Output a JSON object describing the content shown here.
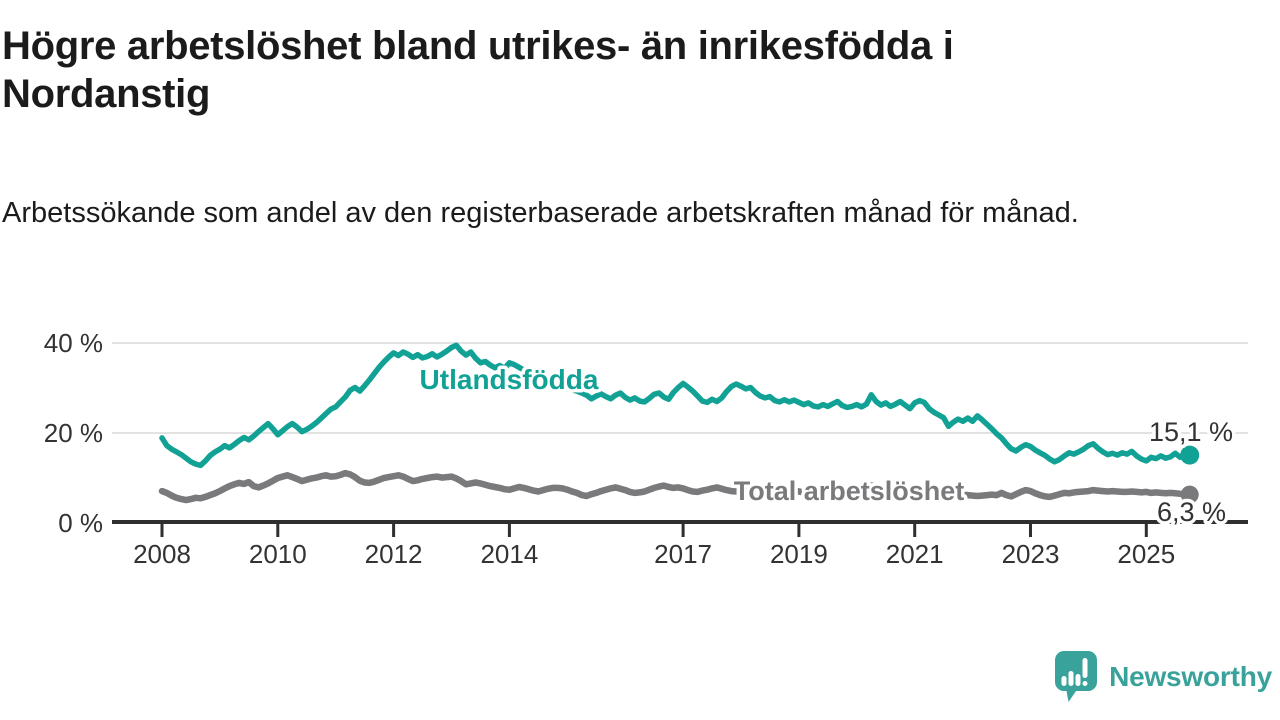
{
  "header": {
    "title": "Högre arbetslöshet bland utrikes- än inrikesfödda i Nordanstig",
    "subtitle": "Arbetssökande som andel av den registerbaserade arbetskraften månad för månad."
  },
  "footer": {
    "brand": "Newsworthy"
  },
  "colors": {
    "utlandsfodda": "#12a195",
    "total": "#7a7a7d",
    "grid": "#d8d8d8",
    "axis": "#2f2f2f",
    "axis_text": "#333333",
    "logo": "#39a29b"
  },
  "chart_data": {
    "type": "line",
    "title": "Högre arbetslöshet bland utrikes- än inrikesfödda i Nordanstig",
    "subtitle": "Arbetssökande som andel av den registerbaserade arbetskraften månad för månad.",
    "xlabel": "",
    "ylabel": "",
    "grid": "horizontal",
    "legend": "inline-labels",
    "x_start": 2008.0,
    "x_step_years": 0.0833333,
    "x_axis": {
      "tick_years": [
        2008,
        2010,
        2012,
        2014,
        2017,
        2019,
        2021,
        2023,
        2025
      ],
      "range": [
        2007.1,
        2026.8
      ]
    },
    "y_axis": {
      "ticks": [
        {
          "value": 0,
          "label": "0 %"
        },
        {
          "value": 20,
          "label": "20 %"
        },
        {
          "value": 40,
          "label": "40 %"
        }
      ],
      "range": [
        0,
        44
      ]
    },
    "series": [
      {
        "name": "Utlandsfödda",
        "color": "#12a195",
        "end_label": "15,1 %",
        "end_value": 15.1,
        "values": [
          18.9,
          17.2,
          16.4,
          15.8,
          15.2,
          14.4,
          13.6,
          13.1,
          12.8,
          13.8,
          15.0,
          15.8,
          16.4,
          17.2,
          16.7,
          17.5,
          18.3,
          19.0,
          18.5,
          19.3,
          20.3,
          21.2,
          22.1,
          20.9,
          19.6,
          20.5,
          21.4,
          22.1,
          21.3,
          20.3,
          20.8,
          21.5,
          22.3,
          23.3,
          24.3,
          25.3,
          25.8,
          26.9,
          28.0,
          29.5,
          30.1,
          29.3,
          30.5,
          31.8,
          33.2,
          34.6,
          35.8,
          36.9,
          37.8,
          37.2,
          38.0,
          37.5,
          36.8,
          37.4,
          36.7,
          37.0,
          37.6,
          36.9,
          37.5,
          38.2,
          39.0,
          39.5,
          38.2,
          37.3,
          38.0,
          36.6,
          35.6,
          35.9,
          35.1,
          34.5,
          35.0,
          34.4,
          35.6,
          35.2,
          34.6,
          34.0,
          33.4,
          32.8,
          32.2,
          31.7,
          31.2,
          30.8,
          30.4,
          30.1,
          29.9,
          29.6,
          29.3,
          28.9,
          28.4,
          27.6,
          28.2,
          28.7,
          28.1,
          27.6,
          28.4,
          28.9,
          27.9,
          27.3,
          27.8,
          27.1,
          26.9,
          27.7,
          28.6,
          28.9,
          28.0,
          27.5,
          29.0,
          30.1,
          31.0,
          30.2,
          29.3,
          28.2,
          27.1,
          26.8,
          27.5,
          27.0,
          27.8,
          29.2,
          30.3,
          30.9,
          30.4,
          29.8,
          30.1,
          29.0,
          28.2,
          27.8,
          28.1,
          27.2,
          26.9,
          27.4,
          26.9,
          27.3,
          26.8,
          26.3,
          26.7,
          26.0,
          25.8,
          26.3,
          25.9,
          26.5,
          27.0,
          26.1,
          25.7,
          25.9,
          26.3,
          25.8,
          26.4,
          28.5,
          27.0,
          26.2,
          26.7,
          25.9,
          26.4,
          27.0,
          26.2,
          25.4,
          26.7,
          27.2,
          26.8,
          25.4,
          24.6,
          24.0,
          23.4,
          21.5,
          22.4,
          23.1,
          22.6,
          23.3,
          22.6,
          23.8,
          22.9,
          21.9,
          20.9,
          19.8,
          18.9,
          17.6,
          16.5,
          16.0,
          16.8,
          17.4,
          17.0,
          16.2,
          15.6,
          15.0,
          14.2,
          13.6,
          14.1,
          14.9,
          15.6,
          15.3,
          15.8,
          16.4,
          17.2,
          17.6,
          16.6,
          15.8,
          15.2,
          15.5,
          15.1,
          15.6,
          15.3,
          15.9,
          14.9,
          14.2,
          13.8,
          14.6,
          14.3,
          14.9,
          14.4,
          14.7,
          15.5,
          14.6,
          15.0,
          15.1
        ]
      },
      {
        "name": "Total arbetslöshet",
        "color": "#7a7a7d",
        "end_label": "6,3 %",
        "end_value": 6.3,
        "values": [
          7.1,
          6.7,
          6.1,
          5.6,
          5.3,
          5.1,
          5.3,
          5.6,
          5.5,
          5.8,
          6.2,
          6.6,
          7.1,
          7.7,
          8.2,
          8.6,
          8.9,
          8.7,
          9.1,
          8.2,
          7.9,
          8.3,
          8.8,
          9.4,
          10.0,
          10.3,
          10.6,
          10.2,
          9.8,
          9.3,
          9.6,
          9.9,
          10.1,
          10.4,
          10.6,
          10.3,
          10.4,
          10.7,
          11.1,
          10.8,
          10.2,
          9.4,
          9.0,
          8.9,
          9.2,
          9.6,
          10.0,
          10.2,
          10.4,
          10.6,
          10.3,
          9.8,
          9.3,
          9.5,
          9.8,
          10.0,
          10.2,
          10.3,
          10.1,
          10.2,
          10.3,
          9.9,
          9.3,
          8.6,
          8.8,
          9.0,
          8.8,
          8.5,
          8.2,
          8.0,
          7.8,
          7.5,
          7.4,
          7.7,
          8.0,
          7.8,
          7.5,
          7.2,
          7.0,
          7.3,
          7.6,
          7.8,
          7.8,
          7.7,
          7.4,
          7.0,
          6.7,
          6.2,
          6.0,
          6.4,
          6.7,
          7.1,
          7.4,
          7.7,
          7.9,
          7.6,
          7.3,
          6.9,
          6.7,
          6.8,
          7.0,
          7.4,
          7.8,
          8.1,
          8.3,
          8.0,
          7.8,
          7.9,
          7.7,
          7.3,
          7.0,
          6.9,
          7.2,
          7.4,
          7.7,
          7.9,
          7.6,
          7.3,
          7.1,
          7.0,
          7.2,
          7.4,
          7.1,
          6.9,
          6.7,
          6.9,
          7.1,
          6.8,
          6.6,
          6.8,
          7.0,
          7.2,
          7.0,
          6.8,
          6.6,
          6.8,
          7.0,
          7.2,
          7.0,
          6.8,
          6.7,
          6.9,
          7.1,
          7.3,
          7.5,
          7.7,
          8.0,
          8.3,
          8.1,
          7.9,
          7.7,
          7.5,
          7.3,
          7.1,
          7.0,
          6.9,
          6.8,
          6.9,
          7.0,
          6.8,
          6.6,
          6.4,
          6.3,
          6.2,
          6.1,
          6.2,
          6.3,
          6.2,
          6.1,
          6.0,
          6.1,
          6.2,
          6.3,
          6.2,
          6.7,
          6.2,
          5.9,
          6.4,
          6.9,
          7.3,
          7.1,
          6.6,
          6.2,
          5.9,
          5.8,
          6.1,
          6.4,
          6.7,
          6.6,
          6.8,
          6.9,
          7.0,
          7.1,
          7.3,
          7.2,
          7.1,
          7.0,
          7.1,
          7.0,
          6.9,
          6.9,
          7.0,
          6.9,
          6.8,
          6.9,
          6.7,
          6.8,
          6.7,
          6.6,
          6.7,
          6.6,
          6.5,
          6.4,
          6.3
        ]
      }
    ]
  }
}
